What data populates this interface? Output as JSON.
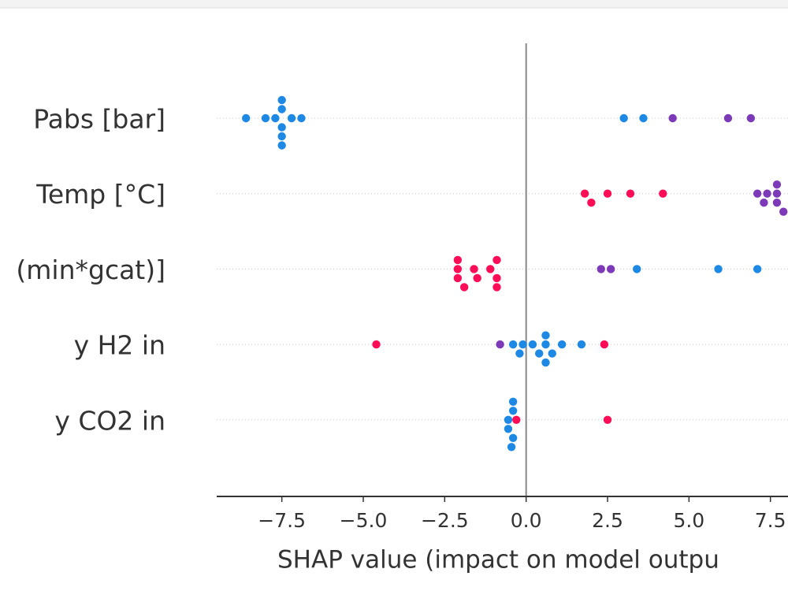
{
  "chart_data": {
    "type": "beeswarm",
    "xlabel": "SHAP value (impact on model outpu",
    "categories": [
      "Pabs [bar]",
      "Temp [°C]",
      "(min*gcat)]",
      "y H2 in",
      "y CO2 in"
    ],
    "points": [
      {
        "x": [
          -8.6,
          -8.0,
          -7.7,
          -7.5,
          -7.5,
          -7.5,
          -7.5,
          -7.5,
          -7.2,
          -6.9,
          3.0,
          3.6,
          4.5,
          6.2,
          6.9
        ],
        "colors": [
          "#1e88e5",
          "#1e88e5",
          "#1e88e5",
          "#1e88e5",
          "#1e88e5",
          "#1e88e5",
          "#1e88e5",
          "#1e88e5",
          "#1e88e5",
          "#1e88e5",
          "#1e88e5",
          "#1e88e5",
          "#7c3ab8",
          "#7c3ab8",
          "#7c3ab8"
        ]
      },
      {
        "x": [
          1.8,
          2.0,
          2.5,
          3.2,
          4.2,
          7.1,
          7.3,
          7.4,
          7.7,
          7.7,
          7.7,
          7.9
        ],
        "colors": [
          "#ff0d57",
          "#ff0d57",
          "#ff0d57",
          "#ff0d57",
          "#ff0d57",
          "#7c3ab8",
          "#7c3ab8",
          "#7c3ab8",
          "#7c3ab8",
          "#7c3ab8",
          "#7c3ab8",
          "#7c3ab8"
        ]
      },
      {
        "x": [
          -2.1,
          -2.1,
          -2.1,
          -1.9,
          -1.6,
          -1.5,
          -1.1,
          -0.9,
          -0.9,
          -0.9,
          2.3,
          2.6,
          3.4,
          5.9,
          7.1
        ],
        "colors": [
          "#ff0d57",
          "#ff0d57",
          "#ff0d57",
          "#ff0d57",
          "#ff0d57",
          "#ff0d57",
          "#ff0d57",
          "#ff0d57",
          "#ff0d57",
          "#ff0d57",
          "#7c3ab8",
          "#7c3ab8",
          "#1e88e5",
          "#1e88e5",
          "#1e88e5"
        ]
      },
      {
        "x": [
          -4.6,
          -0.8,
          -0.4,
          -0.2,
          -0.1,
          0.2,
          0.4,
          0.6,
          0.6,
          0.6,
          0.8,
          1.1,
          1.7,
          2.4
        ],
        "colors": [
          "#ff0d57",
          "#7c3ab8",
          "#1e88e5",
          "#1e88e5",
          "#1e88e5",
          "#1e88e5",
          "#1e88e5",
          "#1e88e5",
          "#1e88e5",
          "#1e88e5",
          "#1e88e5",
          "#1e88e5",
          "#1e88e5",
          "#ff0d57"
        ]
      },
      {
        "x": [
          -0.55,
          -0.55,
          -0.4,
          -0.4,
          -0.4,
          -0.45,
          -0.3,
          2.5
        ],
        "colors": [
          "#1e88e5",
          "#1e88e5",
          "#1e88e5",
          "#1e88e5",
          "#1e88e5",
          "#1e88e5",
          "#ff0d57",
          "#ff0d57"
        ]
      }
    ],
    "xlim": [
      -9.5,
      8.04
    ],
    "xticks": [
      {
        "value": -7.5,
        "label": "−7.5"
      },
      {
        "value": -5.0,
        "label": "−5.0"
      },
      {
        "value": -2.5,
        "label": "−2.5"
      },
      {
        "value": 0,
        "label": "0.0"
      },
      2.5,
      {
        "value": 5.0,
        "label": "5.0"
      },
      7.5
    ]
  }
}
